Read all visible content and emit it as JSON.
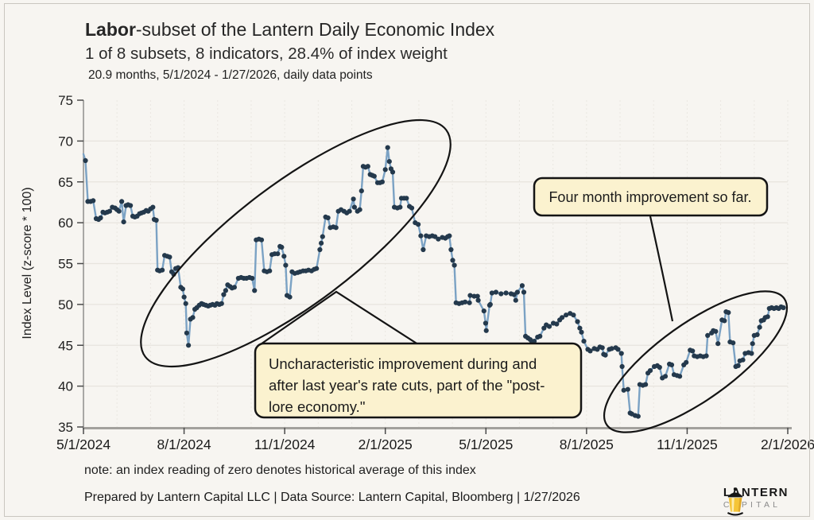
{
  "header": {
    "title_bold": "Labor",
    "title_rest": "-subset of the Lantern Daily Economic Index",
    "subtitle": "1 of 8 subsets, 8 indicators, 28.4% of index weight",
    "subsubtitle": "20.9 months, 5/1/2024 - 1/27/2026, daily data points"
  },
  "annotations": {
    "callout1": {
      "text": "Four month improvement so far.",
      "bg": "#fbf2cf",
      "border": "#141414"
    },
    "callout2": {
      "line1": "Uncharacteristic improvement during and",
      "line2": "after last year's rate cuts, part of the \"post-",
      "line3": "lore economy.\"",
      "bg": "#fbf2cf",
      "border": "#141414"
    }
  },
  "footer": {
    "note": "note: an index reading of zero denotes historical average of this index",
    "prepared": "Prepared by Lantern Capital LLC | Data Source: Lantern Capital, Bloomberg | 1/27/2026"
  },
  "logo": {
    "name": "LANTERN",
    "sub": "CAPITAL",
    "lantern_yellow": "#f5c537"
  },
  "chart_data": {
    "type": "line",
    "title": "Labor-subset of the Lantern Daily Economic Index",
    "xlabel": "",
    "ylabel": "Index Level (z-score * 100)",
    "ylim": [
      35,
      75
    ],
    "y_ticks": [
      35,
      40,
      45,
      50,
      55,
      60,
      65,
      70,
      75
    ],
    "x_domain_months": [
      0,
      21
    ],
    "x_tick_months": [
      0,
      3,
      6,
      9,
      12,
      15,
      18,
      21
    ],
    "x_tick_labels": [
      "5/1/2024",
      "8/1/2024",
      "11/1/2024",
      "2/1/2025",
      "5/1/2025",
      "8/1/2025",
      "11/1/2025",
      "2/1/2026"
    ],
    "grid": true,
    "legend": false,
    "line_color": "#7ba2c4",
    "point_color": "#24394c",
    "lead_in": [
      0.0,
      68.4
    ],
    "points": [
      [
        0.06,
        67.6
      ],
      [
        0.13,
        62.6
      ],
      [
        0.21,
        62.6
      ],
      [
        0.29,
        62.7
      ],
      [
        0.38,
        60.5
      ],
      [
        0.45,
        60.4
      ],
      [
        0.51,
        60.6
      ],
      [
        0.58,
        61.3
      ],
      [
        0.64,
        61.2
      ],
      [
        0.71,
        61.3
      ],
      [
        0.78,
        61.4
      ],
      [
        0.86,
        61.9
      ],
      [
        0.94,
        61.8
      ],
      [
        1.0,
        61.6
      ],
      [
        1.06,
        61.4
      ],
      [
        1.14,
        62.6
      ],
      [
        1.2,
        60.1
      ],
      [
        1.27,
        62.1
      ],
      [
        1.33,
        62.2
      ],
      [
        1.4,
        62.1
      ],
      [
        1.47,
        60.8
      ],
      [
        1.53,
        60.7
      ],
      [
        1.6,
        60.8
      ],
      [
        1.67,
        61.1
      ],
      [
        1.73,
        61.2
      ],
      [
        1.8,
        61.3
      ],
      [
        1.87,
        61.5
      ],
      [
        1.93,
        61.4
      ],
      [
        2.0,
        61.7
      ],
      [
        2.07,
        61.9
      ],
      [
        2.11,
        60.4
      ],
      [
        2.17,
        60.3
      ],
      [
        2.21,
        54.2
      ],
      [
        2.27,
        54.1
      ],
      [
        2.35,
        54.2
      ],
      [
        2.42,
        56.0
      ],
      [
        2.5,
        55.9
      ],
      [
        2.57,
        55.8
      ],
      [
        2.63,
        54.0
      ],
      [
        2.69,
        53.7
      ],
      [
        2.75,
        54.4
      ],
      [
        2.82,
        54.5
      ],
      [
        2.9,
        52.1
      ],
      [
        2.96,
        51.9
      ],
      [
        3.0,
        50.9
      ],
      [
        3.05,
        50.1
      ],
      [
        3.08,
        46.5
      ],
      [
        3.13,
        45.0
      ],
      [
        3.19,
        48.2
      ],
      [
        3.26,
        48.4
      ],
      [
        3.32,
        49.4
      ],
      [
        3.38,
        49.6
      ],
      [
        3.45,
        49.9
      ],
      [
        3.52,
        50.1
      ],
      [
        3.58,
        50.0
      ],
      [
        3.65,
        49.9
      ],
      [
        3.72,
        49.8
      ],
      [
        3.78,
        49.9
      ],
      [
        3.85,
        50.0
      ],
      [
        3.92,
        49.9
      ],
      [
        3.98,
        50.1
      ],
      [
        4.05,
        50.0
      ],
      [
        4.12,
        50.1
      ],
      [
        4.18,
        51.2
      ],
      [
        4.24,
        51.7
      ],
      [
        4.3,
        52.4
      ],
      [
        4.37,
        52.2
      ],
      [
        4.43,
        52.0
      ],
      [
        4.5,
        52.1
      ],
      [
        4.62,
        53.2
      ],
      [
        4.7,
        53.3
      ],
      [
        4.78,
        53.2
      ],
      [
        4.86,
        53.2
      ],
      [
        4.95,
        53.3
      ],
      [
        5.03,
        53.2
      ],
      [
        5.1,
        51.7
      ],
      [
        5.15,
        57.9
      ],
      [
        5.23,
        58.0
      ],
      [
        5.31,
        57.9
      ],
      [
        5.39,
        54.1
      ],
      [
        5.47,
        54.0
      ],
      [
        5.55,
        54.1
      ],
      [
        5.62,
        56.1
      ],
      [
        5.7,
        56.2
      ],
      [
        5.79,
        56.2
      ],
      [
        5.86,
        57.1
      ],
      [
        5.91,
        57.0
      ],
      [
        5.98,
        55.9
      ],
      [
        6.03,
        54.8
      ],
      [
        6.07,
        51.1
      ],
      [
        6.15,
        50.9
      ],
      [
        6.22,
        54.0
      ],
      [
        6.3,
        53.8
      ],
      [
        6.39,
        53.9
      ],
      [
        6.46,
        54.0
      ],
      [
        6.55,
        54.1
      ],
      [
        6.63,
        54.1
      ],
      [
        6.71,
        54.2
      ],
      [
        6.8,
        54.1
      ],
      [
        6.88,
        54.3
      ],
      [
        6.95,
        54.4
      ],
      [
        7.05,
        56.7
      ],
      [
        7.09,
        57.5
      ],
      [
        7.13,
        58.3
      ],
      [
        7.22,
        60.7
      ],
      [
        7.29,
        60.6
      ],
      [
        7.36,
        59.4
      ],
      [
        7.45,
        59.5
      ],
      [
        7.53,
        59.4
      ],
      [
        7.6,
        61.4
      ],
      [
        7.68,
        61.6
      ],
      [
        7.77,
        61.4
      ],
      [
        7.85,
        61.2
      ],
      [
        7.93,
        61.4
      ],
      [
        8.05,
        62.9
      ],
      [
        8.08,
        61.9
      ],
      [
        8.17,
        61.4
      ],
      [
        8.24,
        61.6
      ],
      [
        8.29,
        63.9
      ],
      [
        8.34,
        66.9
      ],
      [
        8.41,
        66.8
      ],
      [
        8.48,
        66.9
      ],
      [
        8.55,
        65.9
      ],
      [
        8.61,
        65.8
      ],
      [
        8.67,
        65.7
      ],
      [
        8.77,
        64.9
      ],
      [
        8.84,
        64.9
      ],
      [
        8.91,
        65.0
      ],
      [
        9.0,
        66.5
      ],
      [
        9.07,
        69.2
      ],
      [
        9.12,
        67.5
      ],
      [
        9.17,
        66.6
      ],
      [
        9.22,
        66.2
      ],
      [
        9.27,
        61.9
      ],
      [
        9.36,
        61.8
      ],
      [
        9.44,
        61.9
      ],
      [
        9.48,
        63.0
      ],
      [
        9.56,
        63.0
      ],
      [
        9.63,
        63.0
      ],
      [
        9.72,
        62.0
      ],
      [
        9.79,
        61.8
      ],
      [
        9.89,
        60.0
      ],
      [
        9.98,
        59.8
      ],
      [
        10.06,
        58.4
      ],
      [
        10.13,
        56.7
      ],
      [
        10.22,
        58.4
      ],
      [
        10.31,
        58.3
      ],
      [
        10.4,
        58.4
      ],
      [
        10.48,
        58.3
      ],
      [
        10.58,
        58.0
      ],
      [
        10.7,
        58.2
      ],
      [
        10.79,
        58.1
      ],
      [
        10.86,
        58.3
      ],
      [
        10.91,
        58.4
      ],
      [
        10.96,
        56.7
      ],
      [
        11.01,
        55.4
      ],
      [
        11.06,
        54.8
      ],
      [
        11.11,
        50.2
      ],
      [
        11.2,
        50.1
      ],
      [
        11.29,
        50.2
      ],
      [
        11.38,
        50.3
      ],
      [
        11.51,
        50.2
      ],
      [
        11.53,
        51.1
      ],
      [
        11.65,
        51.0
      ],
      [
        11.75,
        51.0
      ],
      [
        11.77,
        50.5
      ],
      [
        11.94,
        49.2
      ],
      [
        11.99,
        47.7
      ],
      [
        12.01,
        46.8
      ],
      [
        12.11,
        49.9
      ],
      [
        12.13,
        50.0
      ],
      [
        12.18,
        51.4
      ],
      [
        12.3,
        51.5
      ],
      [
        12.45,
        51.3
      ],
      [
        12.6,
        51.4
      ],
      [
        12.75,
        51.3
      ],
      [
        12.84,
        51.2
      ],
      [
        12.89,
        50.5
      ],
      [
        12.94,
        51.5
      ],
      [
        13.08,
        52.3
      ],
      [
        13.13,
        51.5
      ],
      [
        13.18,
        46.1
      ],
      [
        13.25,
        45.9
      ],
      [
        13.32,
        45.7
      ],
      [
        13.37,
        45.3
      ],
      [
        13.44,
        45.5
      ],
      [
        13.54,
        46.0
      ],
      [
        13.61,
        46.1
      ],
      [
        13.73,
        47.1
      ],
      [
        13.8,
        47.5
      ],
      [
        13.89,
        47.3
      ],
      [
        14.01,
        47.7
      ],
      [
        14.11,
        47.6
      ],
      [
        14.2,
        48.1
      ],
      [
        14.27,
        48.4
      ],
      [
        14.39,
        48.7
      ],
      [
        14.51,
        48.9
      ],
      [
        14.61,
        48.7
      ],
      [
        14.73,
        47.9
      ],
      [
        14.8,
        47.1
      ],
      [
        14.85,
        46.6
      ],
      [
        14.92,
        45.5
      ],
      [
        15.04,
        44.5
      ],
      [
        15.11,
        44.3
      ],
      [
        15.23,
        44.6
      ],
      [
        15.32,
        44.5
      ],
      [
        15.4,
        44.8
      ],
      [
        15.47,
        44.7
      ],
      [
        15.51,
        43.9
      ],
      [
        15.56,
        43.8
      ],
      [
        15.68,
        44.5
      ],
      [
        15.75,
        44.6
      ],
      [
        15.87,
        44.7
      ],
      [
        15.94,
        44.5
      ],
      [
        16.04,
        44.0
      ],
      [
        16.06,
        42.4
      ],
      [
        16.11,
        39.5
      ],
      [
        16.23,
        39.6
      ],
      [
        16.3,
        36.7
      ],
      [
        16.35,
        36.6
      ],
      [
        16.45,
        36.4
      ],
      [
        16.54,
        36.3
      ],
      [
        16.59,
        40.2
      ],
      [
        16.68,
        40.1
      ],
      [
        16.76,
        40.2
      ],
      [
        16.83,
        41.6
      ],
      [
        16.9,
        41.9
      ],
      [
        17.02,
        42.4
      ],
      [
        17.11,
        42.5
      ],
      [
        17.18,
        42.3
      ],
      [
        17.26,
        41.0
      ],
      [
        17.35,
        41.2
      ],
      [
        17.47,
        42.7
      ],
      [
        17.54,
        42.6
      ],
      [
        17.61,
        41.4
      ],
      [
        17.7,
        41.3
      ],
      [
        17.78,
        41.2
      ],
      [
        17.9,
        42.6
      ],
      [
        17.97,
        42.9
      ],
      [
        18.09,
        44.4
      ],
      [
        18.16,
        44.3
      ],
      [
        18.21,
        43.7
      ],
      [
        18.3,
        43.6
      ],
      [
        18.39,
        43.7
      ],
      [
        18.48,
        43.6
      ],
      [
        18.57,
        43.7
      ],
      [
        18.61,
        46.2
      ],
      [
        18.73,
        46.5
      ],
      [
        18.78,
        46.8
      ],
      [
        18.85,
        46.7
      ],
      [
        18.92,
        45.2
      ],
      [
        19.04,
        48.1
      ],
      [
        19.11,
        48.0
      ],
      [
        19.16,
        49.1
      ],
      [
        19.23,
        49.0
      ],
      [
        19.28,
        45.4
      ],
      [
        19.37,
        45.3
      ],
      [
        19.45,
        42.4
      ],
      [
        19.52,
        42.5
      ],
      [
        19.57,
        43.1
      ],
      [
        19.66,
        43.2
      ],
      [
        19.73,
        44.0
      ],
      [
        19.83,
        44.1
      ],
      [
        19.92,
        44.0
      ],
      [
        19.95,
        45.2
      ],
      [
        20.0,
        46.2
      ],
      [
        20.09,
        46.3
      ],
      [
        20.16,
        47.2
      ],
      [
        20.21,
        48.0
      ],
      [
        20.28,
        48.1
      ],
      [
        20.33,
        48.4
      ],
      [
        20.4,
        48.5
      ],
      [
        20.45,
        49.5
      ],
      [
        20.52,
        49.6
      ],
      [
        20.59,
        49.5
      ],
      [
        20.66,
        49.6
      ],
      [
        20.73,
        49.5
      ],
      [
        20.8,
        49.7
      ],
      [
        20.87,
        49.6
      ]
    ]
  }
}
